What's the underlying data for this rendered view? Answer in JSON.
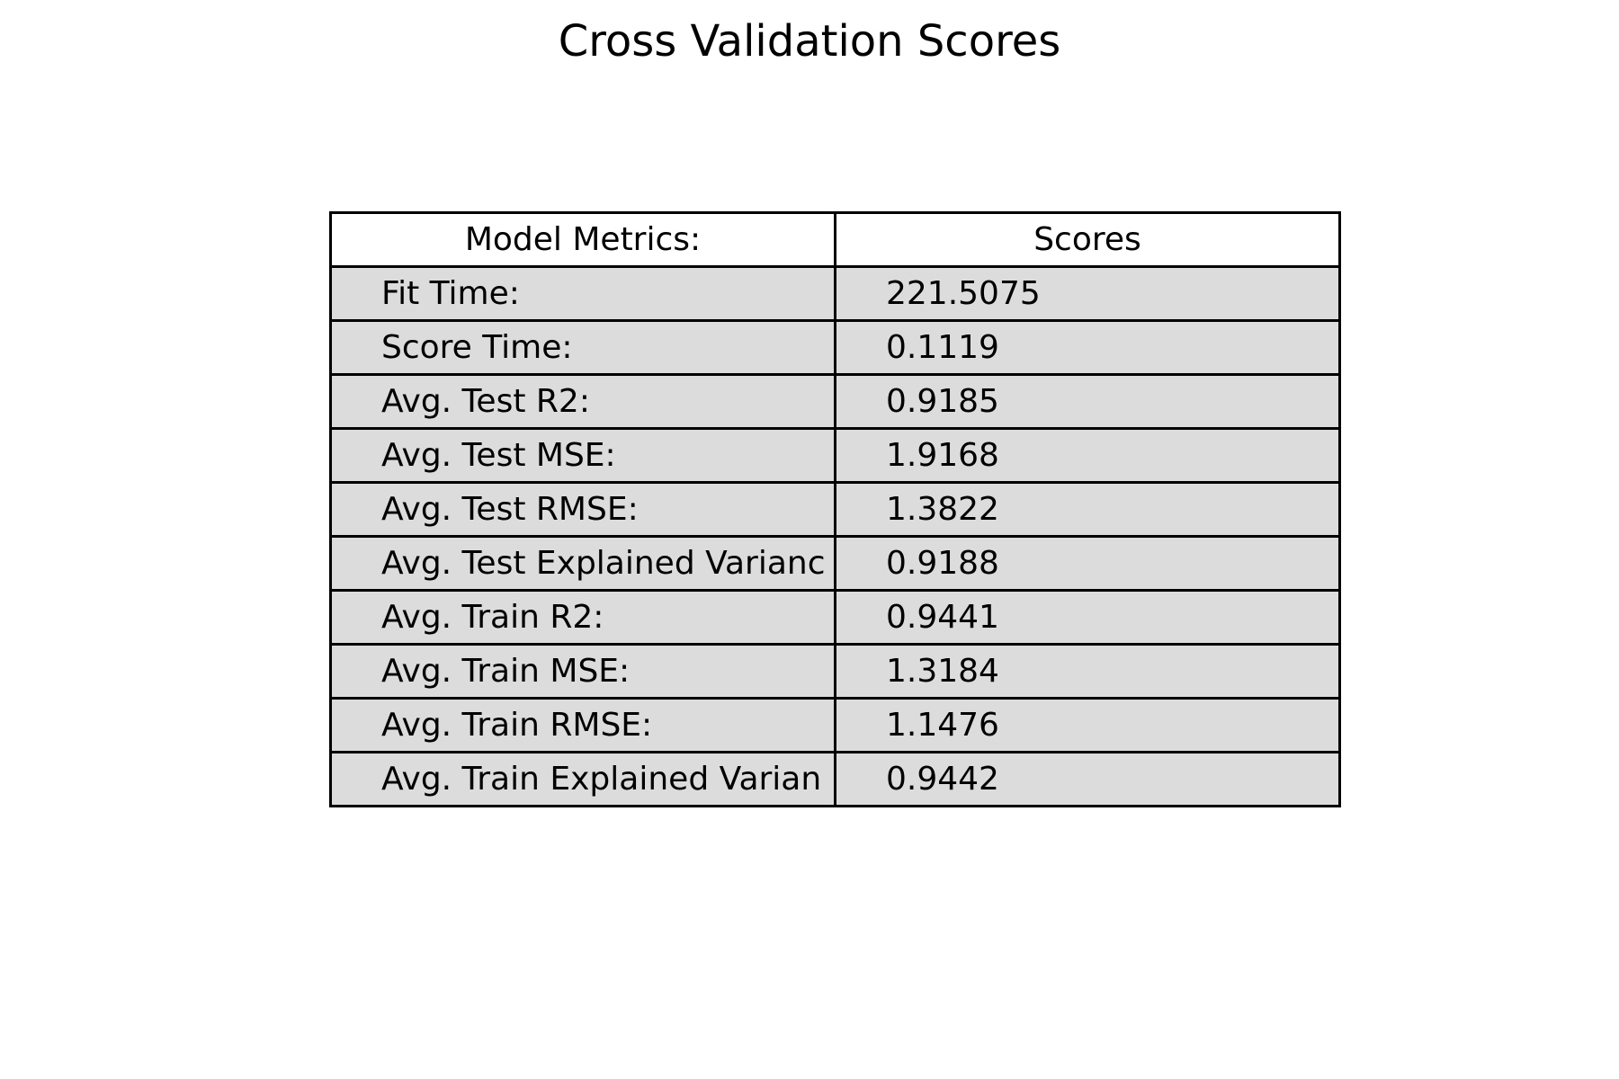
{
  "chart_data": {
    "type": "table",
    "title": "Cross Validation Scores",
    "columns": [
      "Model Metrics:",
      "Scores"
    ],
    "rows": [
      [
        "Fit Time:",
        "221.5075"
      ],
      [
        "Score Time:",
        "0.1119"
      ],
      [
        "Avg. Test R2:",
        "0.9185"
      ],
      [
        "Avg. Test MSE:",
        "1.9168"
      ],
      [
        "Avg. Test RMSE:",
        "1.3822"
      ],
      [
        "Avg. Test Explained Varianc",
        "0.9188"
      ],
      [
        "Avg. Train R2:",
        "0.9441"
      ],
      [
        "Avg. Train MSE:",
        "1.3184"
      ],
      [
        "Avg. Train RMSE:",
        "1.1476"
      ],
      [
        "Avg. Train Explained Varian",
        "0.9442"
      ]
    ],
    "colors": {
      "header_background": "#ffffff",
      "cell_background": "#dcdcdc",
      "border": "#000000"
    }
  }
}
